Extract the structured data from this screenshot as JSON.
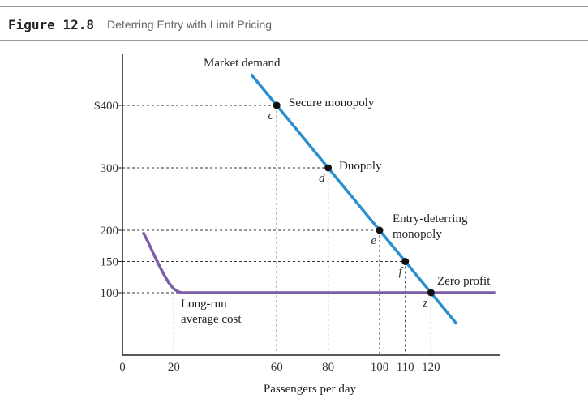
{
  "figure": {
    "number": "Figure 12.8",
    "title": "Deterring Entry with Limit Pricing"
  },
  "chart_data": {
    "type": "line",
    "xlabel": "Passengers per day",
    "ylabel": "",
    "xlim": [
      0,
      145
    ],
    "ylim": [
      0,
      450
    ],
    "x_ticks": [
      {
        "value": 0,
        "label": "0"
      },
      {
        "value": 20,
        "label": "20"
      },
      {
        "value": 60,
        "label": "60"
      },
      {
        "value": 80,
        "label": "80"
      },
      {
        "value": 100,
        "label": "100"
      },
      {
        "value": 110,
        "label": "110"
      },
      {
        "value": 120,
        "label": "120"
      }
    ],
    "y_ticks": [
      {
        "value": 400,
        "label": "$400"
      },
      {
        "value": 300,
        "label": "300"
      },
      {
        "value": 200,
        "label": "200"
      },
      {
        "value": 150,
        "label": "150"
      },
      {
        "value": 100,
        "label": "100"
      }
    ],
    "series": [
      {
        "name": "Market demand",
        "color": "#2a8fd0",
        "x": [
          50,
          130
        ],
        "y": [
          450,
          50
        ]
      },
      {
        "name": "Long-run average cost",
        "color": "#7b5ea7",
        "x": [
          8,
          10,
          12,
          14,
          16,
          18,
          20,
          22,
          23,
          145
        ],
        "y": [
          197,
          181,
          163,
          146,
          130,
          116,
          106,
          101,
          100,
          100
        ]
      }
    ],
    "points": [
      {
        "x": 60,
        "y": 400,
        "label": "c",
        "annotation": "Secure monopoly"
      },
      {
        "x": 80,
        "y": 300,
        "label": "d",
        "annotation": "Duopoly"
      },
      {
        "x": 100,
        "y": 200,
        "label": "e",
        "annotation": "Entry-deterring monopoly"
      },
      {
        "x": 110,
        "y": 150,
        "label": "f",
        "annotation": ""
      },
      {
        "x": 120,
        "y": 100,
        "label": "z",
        "annotation": "Zero profit"
      }
    ],
    "guide_x": [
      20
    ],
    "legend": "none"
  }
}
